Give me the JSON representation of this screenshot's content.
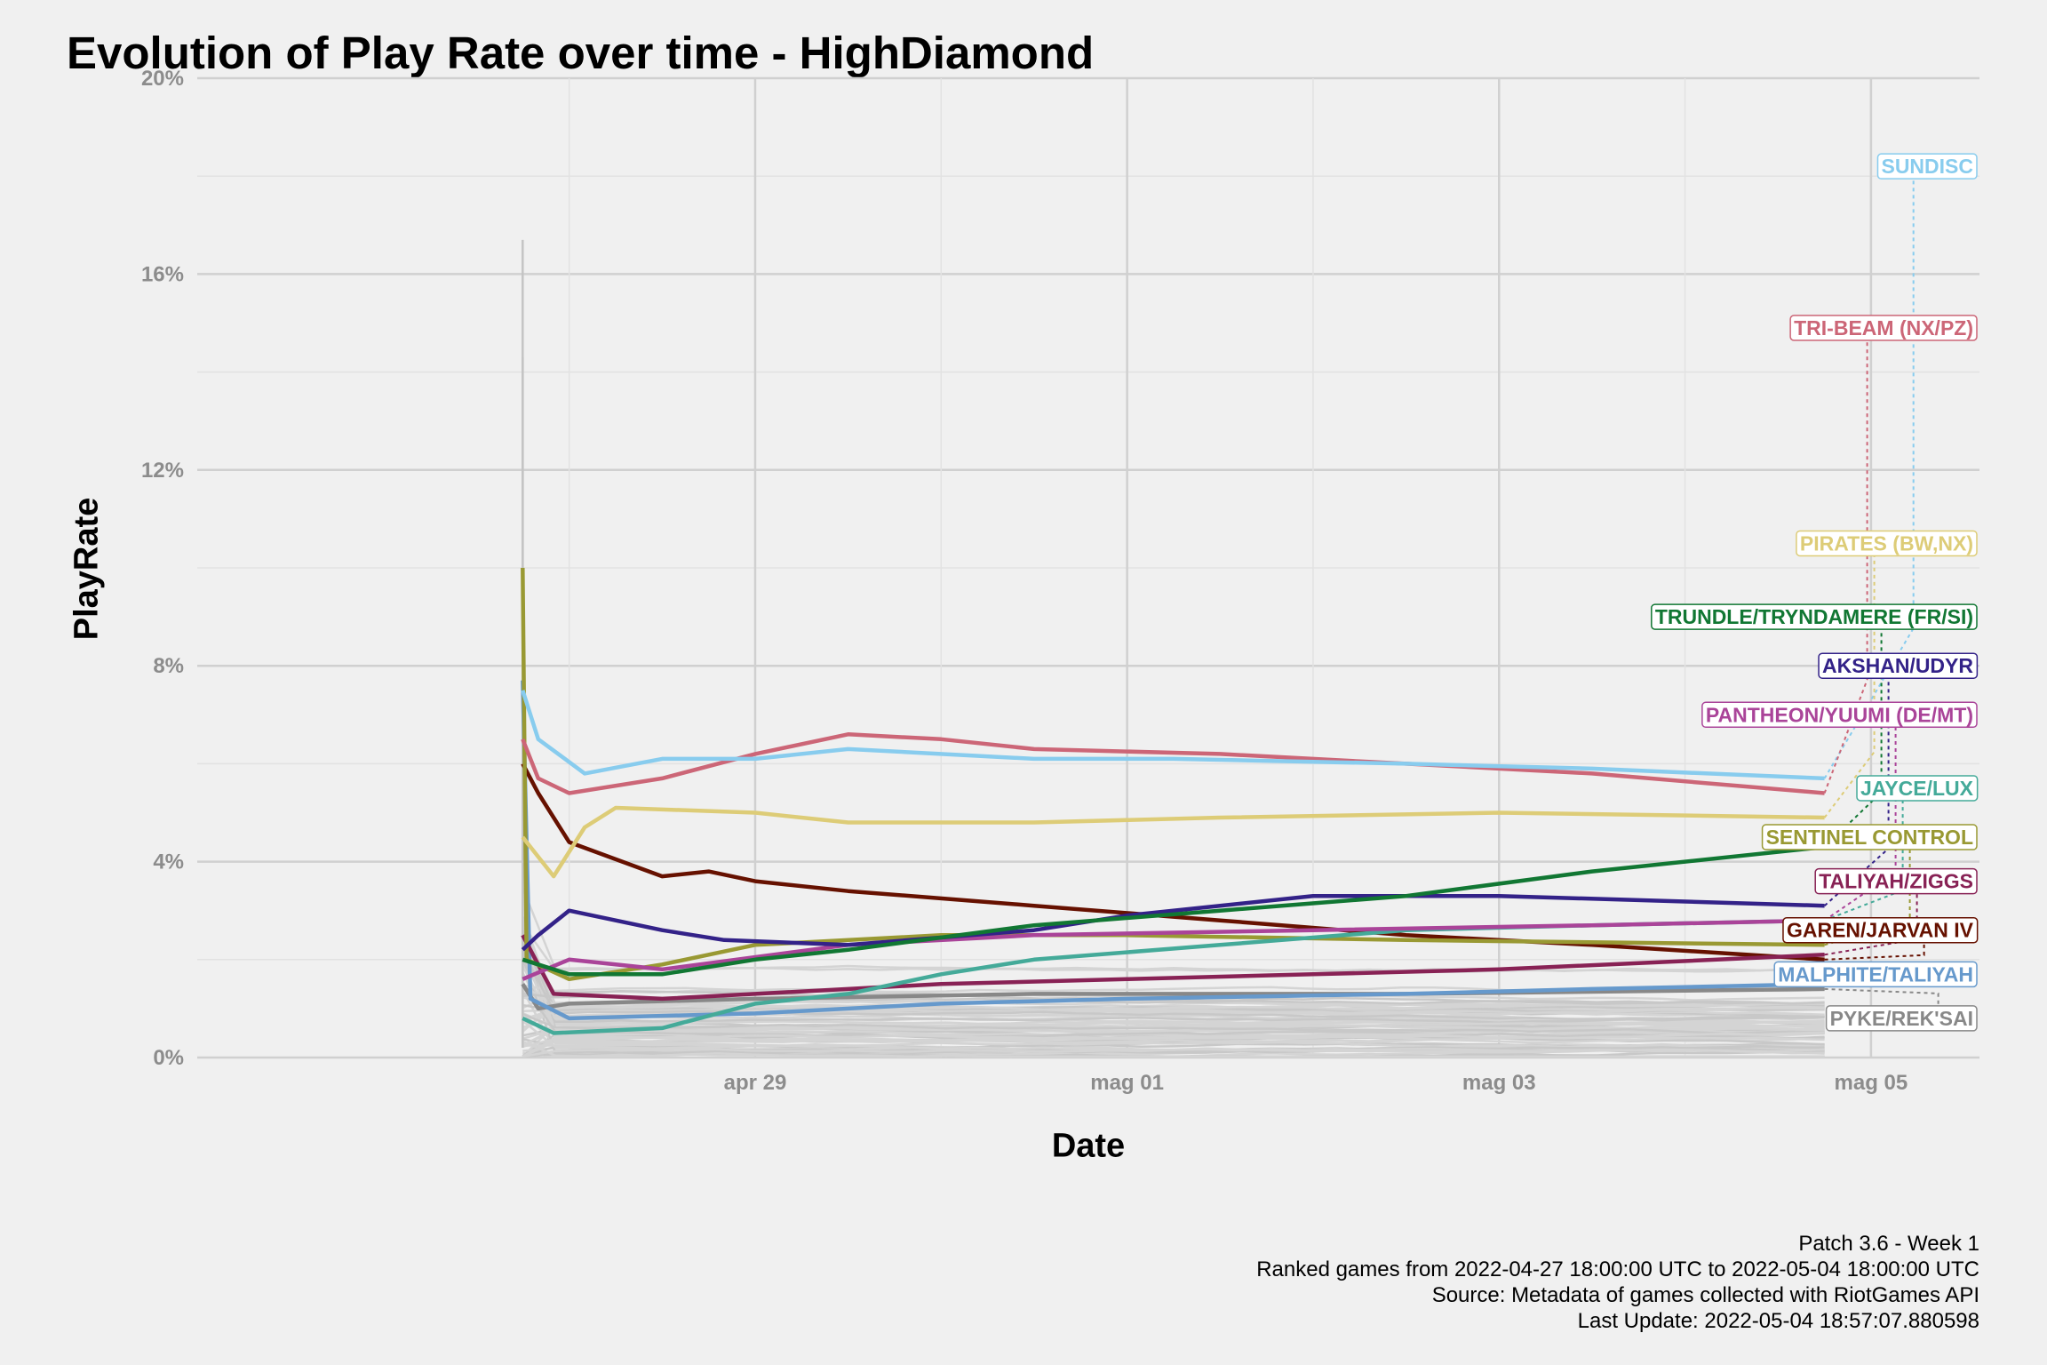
{
  "title": "Evolution of Play Rate over time - HighDiamond",
  "caption": [
    "Patch 3.6 - Week 1",
    "Ranked games from 2022-04-27 18:00:00 UTC to 2022-05-04 18:00:00 UTC",
    "Source: Metadata of games collected with RiotGames API",
    "Last Update: 2022-05-04 18:57:07.880598"
  ],
  "chart_data": {
    "type": "line",
    "title": "Evolution of Play Rate over time - HighDiamond",
    "xlabel": "Date",
    "ylabel": "PlayRate",
    "x_range": [
      "2022-04-26T00:00",
      "2022-05-05T14:00"
    ],
    "ylim": [
      0,
      20
    ],
    "y_ticks": [
      0,
      4,
      8,
      12,
      16,
      20
    ],
    "y_tick_labels": [
      "0%",
      "4%",
      "8%",
      "12%",
      "16%",
      "20%"
    ],
    "x_ticks": [
      "2022-04-29",
      "2022-05-01",
      "2022-05-03",
      "2022-05-05"
    ],
    "x_tick_labels": [
      "apr 29",
      "mag 01",
      "mag 03",
      "mag 05"
    ],
    "grid": true,
    "legend": "direct labels at right end",
    "series": [
      {
        "name": "SUNDISC",
        "color": "#88CCEE",
        "label_y": 18.2,
        "points": [
          [
            "2022-04-27T18:00",
            7.5
          ],
          [
            "2022-04-27T20:00",
            6.5
          ],
          [
            "2022-04-28T02:00",
            5.8
          ],
          [
            "2022-04-28T12:00",
            6.1
          ],
          [
            "2022-04-29T00:00",
            6.1
          ],
          [
            "2022-04-29T12:00",
            6.3
          ],
          [
            "2022-04-30T12:00",
            6.1
          ],
          [
            "2022-05-01T06:00",
            6.1
          ],
          [
            "2022-05-02T12:00",
            6.0
          ],
          [
            "2022-05-03T12:00",
            5.9
          ],
          [
            "2022-05-04T18:00",
            5.7
          ]
        ]
      },
      {
        "name": "TRI-BEAM (NX/PZ)",
        "color": "#CC6677",
        "label_y": 14.9,
        "points": [
          [
            "2022-04-27T18:00",
            6.5
          ],
          [
            "2022-04-27T20:00",
            5.7
          ],
          [
            "2022-04-28T00:00",
            5.4
          ],
          [
            "2022-04-28T12:00",
            5.7
          ],
          [
            "2022-04-29T00:00",
            6.2
          ],
          [
            "2022-04-29T12:00",
            6.6
          ],
          [
            "2022-04-30T00:00",
            6.5
          ],
          [
            "2022-04-30T12:00",
            6.3
          ],
          [
            "2022-05-01T12:00",
            6.2
          ],
          [
            "2022-05-02T12:00",
            6.0
          ],
          [
            "2022-05-03T12:00",
            5.8
          ],
          [
            "2022-05-04T18:00",
            5.4
          ]
        ]
      },
      {
        "name": "PIRATES (BW,NX)",
        "color": "#DDCC77",
        "label_y": 10.5,
        "points": [
          [
            "2022-04-27T18:00",
            4.5
          ],
          [
            "2022-04-27T22:00",
            3.7
          ],
          [
            "2022-04-28T02:00",
            4.7
          ],
          [
            "2022-04-28T06:00",
            5.1
          ],
          [
            "2022-04-29T00:00",
            5.0
          ],
          [
            "2022-04-29T12:00",
            4.8
          ],
          [
            "2022-04-30T12:00",
            4.8
          ],
          [
            "2022-05-01T12:00",
            4.9
          ],
          [
            "2022-05-03T00:00",
            5.0
          ],
          [
            "2022-05-04T18:00",
            4.9
          ]
        ]
      },
      {
        "name": "TRUNDLE/TRYNDAMERE (FR/SI)",
        "color": "#117733",
        "label_y": 9.0,
        "points": [
          [
            "2022-04-27T18:00",
            2.0
          ],
          [
            "2022-04-28T00:00",
            1.7
          ],
          [
            "2022-04-28T12:00",
            1.7
          ],
          [
            "2022-04-29T00:00",
            2.0
          ],
          [
            "2022-04-29T12:00",
            2.2
          ],
          [
            "2022-04-30T12:00",
            2.7
          ],
          [
            "2022-05-01T12:00",
            3.0
          ],
          [
            "2022-05-02T12:00",
            3.3
          ],
          [
            "2022-05-03T12:00",
            3.8
          ],
          [
            "2022-05-04T18:00",
            4.3
          ]
        ]
      },
      {
        "name": "AKSHAN/UDYR",
        "color": "#332288",
        "label_y": 8.0,
        "points": [
          [
            "2022-04-27T18:00",
            2.2
          ],
          [
            "2022-04-27T20:00",
            2.5
          ],
          [
            "2022-04-28T00:00",
            3.0
          ],
          [
            "2022-04-28T12:00",
            2.6
          ],
          [
            "2022-04-28T20:00",
            2.4
          ],
          [
            "2022-04-29T12:00",
            2.3
          ],
          [
            "2022-04-30T12:00",
            2.6
          ],
          [
            "2022-05-01T00:00",
            2.9
          ],
          [
            "2022-05-01T12:00",
            3.1
          ],
          [
            "2022-05-02T00:00",
            3.3
          ],
          [
            "2022-05-03T00:00",
            3.3
          ],
          [
            "2022-05-04T18:00",
            3.1
          ]
        ]
      },
      {
        "name": "PANTHEON/YUUMI (DE/MT)",
        "color": "#AA4499",
        "label_y": 7.0,
        "points": [
          [
            "2022-04-27T18:00",
            1.6
          ],
          [
            "2022-04-28T00:00",
            2.0
          ],
          [
            "2022-04-28T12:00",
            1.8
          ],
          [
            "2022-04-29T12:00",
            2.3
          ],
          [
            "2022-04-30T12:00",
            2.5
          ],
          [
            "2022-05-02T00:00",
            2.6
          ],
          [
            "2022-05-03T12:00",
            2.7
          ],
          [
            "2022-05-04T18:00",
            2.8
          ]
        ]
      },
      {
        "name": "JAYCE/LUX",
        "color": "#44AA99",
        "label_y": 5.5,
        "points": [
          [
            "2022-04-27T18:00",
            0.8
          ],
          [
            "2022-04-27T22:00",
            0.5
          ],
          [
            "2022-04-28T12:00",
            0.6
          ],
          [
            "2022-04-29T00:00",
            1.1
          ],
          [
            "2022-04-29T12:00",
            1.3
          ],
          [
            "2022-04-30T00:00",
            1.7
          ],
          [
            "2022-04-30T12:00",
            2.0
          ],
          [
            "2022-05-01T12:00",
            2.3
          ],
          [
            "2022-05-02T12:00",
            2.6
          ],
          [
            "2022-05-03T12:00",
            2.7
          ],
          [
            "2022-05-04T18:00",
            2.8
          ]
        ]
      },
      {
        "name": "SENTINEL CONTROL",
        "color": "#999933",
        "label_y": 4.5,
        "points": [
          [
            "2022-04-27T18:00",
            10.0
          ],
          [
            "2022-04-27T18:30",
            2.0
          ],
          [
            "2022-04-28T00:00",
            1.6
          ],
          [
            "2022-04-28T12:00",
            1.9
          ],
          [
            "2022-04-29T00:00",
            2.3
          ],
          [
            "2022-04-30T00:00",
            2.5
          ],
          [
            "2022-05-01T00:00",
            2.5
          ],
          [
            "2022-05-02T12:00",
            2.4
          ],
          [
            "2022-05-04T18:00",
            2.3
          ]
        ]
      },
      {
        "name": "TALIYAH/ZIGGS",
        "color": "#882255",
        "label_y": 3.6,
        "points": [
          [
            "2022-04-27T18:00",
            2.5
          ],
          [
            "2022-04-27T22:00",
            1.3
          ],
          [
            "2022-04-28T12:00",
            1.2
          ],
          [
            "2022-04-29T00:00",
            1.3
          ],
          [
            "2022-04-30T00:00",
            1.5
          ],
          [
            "2022-05-01T00:00",
            1.6
          ],
          [
            "2022-05-02T00:00",
            1.7
          ],
          [
            "2022-05-03T00:00",
            1.8
          ],
          [
            "2022-05-04T18:00",
            2.1
          ]
        ]
      },
      {
        "name": "GAREN/JARVAN IV",
        "color": "#661100",
        "label_y": 2.6,
        "points": [
          [
            "2022-04-27T18:00",
            6.0
          ],
          [
            "2022-04-27T20:00",
            5.4
          ],
          [
            "2022-04-28T00:00",
            4.4
          ],
          [
            "2022-04-28T12:00",
            3.7
          ],
          [
            "2022-04-28T18:00",
            3.8
          ],
          [
            "2022-04-29T00:00",
            3.6
          ],
          [
            "2022-04-29T12:00",
            3.4
          ],
          [
            "2022-04-30T12:00",
            3.1
          ],
          [
            "2022-05-01T12:00",
            2.8
          ],
          [
            "2022-05-02T12:00",
            2.5
          ],
          [
            "2022-05-03T12:00",
            2.3
          ],
          [
            "2022-05-04T18:00",
            2.0
          ]
        ]
      },
      {
        "name": "MALPHITE/TALIYAH",
        "color": "#6699CC",
        "label_y": 1.7,
        "points": [
          [
            "2022-04-27T18:00",
            7.7
          ],
          [
            "2022-04-27T19:00",
            1.2
          ],
          [
            "2022-04-28T00:00",
            0.8
          ],
          [
            "2022-04-29T00:00",
            0.9
          ],
          [
            "2022-04-30T00:00",
            1.1
          ],
          [
            "2022-05-01T00:00",
            1.2
          ],
          [
            "2022-05-02T12:00",
            1.3
          ],
          [
            "2022-05-03T12:00",
            1.4
          ],
          [
            "2022-05-04T18:00",
            1.5
          ]
        ]
      },
      {
        "name": "PYKE/REK'SAI",
        "color": "#888888",
        "label_y": 0.8,
        "points": [
          [
            "2022-04-27T18:00",
            1.5
          ],
          [
            "2022-04-27T20:00",
            1.0
          ],
          [
            "2022-04-28T00:00",
            1.1
          ],
          [
            "2022-04-29T00:00",
            1.2
          ],
          [
            "2022-04-30T12:00",
            1.3
          ],
          [
            "2022-05-02T12:00",
            1.3
          ],
          [
            "2022-05-04T18:00",
            1.4
          ]
        ]
      }
    ]
  }
}
